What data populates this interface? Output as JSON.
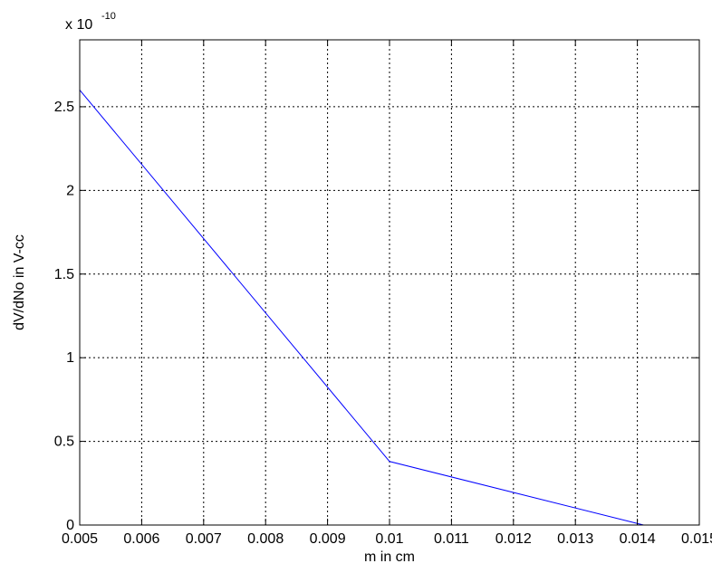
{
  "chart_data": {
    "type": "line",
    "title": "",
    "xlabel": "m in cm",
    "ylabel": "dV/dNo in V-cc",
    "y_multiplier": {
      "base": "x 10",
      "exponent": "-10"
    },
    "xlim": [
      0.005,
      0.015
    ],
    "ylim": [
      0,
      2.9
    ],
    "x_ticks": [
      {
        "value": 0.005,
        "label": "0.005"
      },
      {
        "value": 0.006,
        "label": "0.006"
      },
      {
        "value": 0.007,
        "label": "0.007"
      },
      {
        "value": 0.008,
        "label": "0.008"
      },
      {
        "value": 0.009,
        "label": "0.009"
      },
      {
        "value": 0.01,
        "label": "0.01"
      },
      {
        "value": 0.011,
        "label": "0.011"
      },
      {
        "value": 0.012,
        "label": "0.012"
      },
      {
        "value": 0.013,
        "label": "0.013"
      },
      {
        "value": 0.014,
        "label": "0.014"
      },
      {
        "value": 0.015,
        "label": "0.015"
      }
    ],
    "y_ticks": [
      {
        "value": 0,
        "label": "0"
      },
      {
        "value": 0.5,
        "label": "0.5"
      },
      {
        "value": 1,
        "label": "1"
      },
      {
        "value": 1.5,
        "label": "1.5"
      },
      {
        "value": 2,
        "label": "2"
      },
      {
        "value": 2.5,
        "label": "2.5"
      }
    ],
    "grid": true,
    "series": [
      {
        "color": "#0000ff",
        "x": [
          0.005,
          0.01,
          0.0141
        ],
        "y": [
          2.6,
          0.38,
          0.0
        ]
      }
    ]
  }
}
